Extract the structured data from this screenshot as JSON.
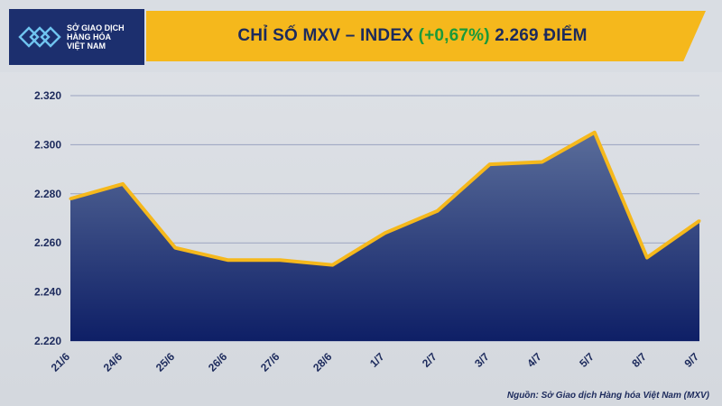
{
  "logo": {
    "line1": "SỞ GIAO DỊCH",
    "line2": "HÀNG HÓA",
    "line3": "VIỆT NAM"
  },
  "title": {
    "prefix": "CHỈ SỐ MXV – INDEX ",
    "change": "(+0,67%)",
    "suffix": " 2.269 ĐIỂM"
  },
  "source": "Nguồn: Sở Giao dịch Hàng hóa Việt Nam (MXV)",
  "colors": {
    "area_top": "#5a6d9a",
    "area_bottom": "#0e1f66",
    "line": "#f5b81c",
    "axis_text": "#1c2a5c"
  },
  "chart_data": {
    "type": "area",
    "categories": [
      "21/6",
      "24/6",
      "25/6",
      "26/6",
      "27/6",
      "28/6",
      "1/7",
      "2/7",
      "3/7",
      "4/7",
      "5/7",
      "8/7",
      "9/7"
    ],
    "values": [
      2278,
      2284,
      2258,
      2253,
      2253,
      2251,
      2264,
      2273,
      2292,
      2293,
      2305,
      2254,
      2269
    ],
    "ylim": [
      2220,
      2320
    ],
    "yticks": [
      "2.220",
      "2.240",
      "2.260",
      "2.280",
      "2.300",
      "2.320"
    ],
    "ytick_values": [
      2220,
      2240,
      2260,
      2280,
      2300,
      2320
    ],
    "grid": true
  }
}
